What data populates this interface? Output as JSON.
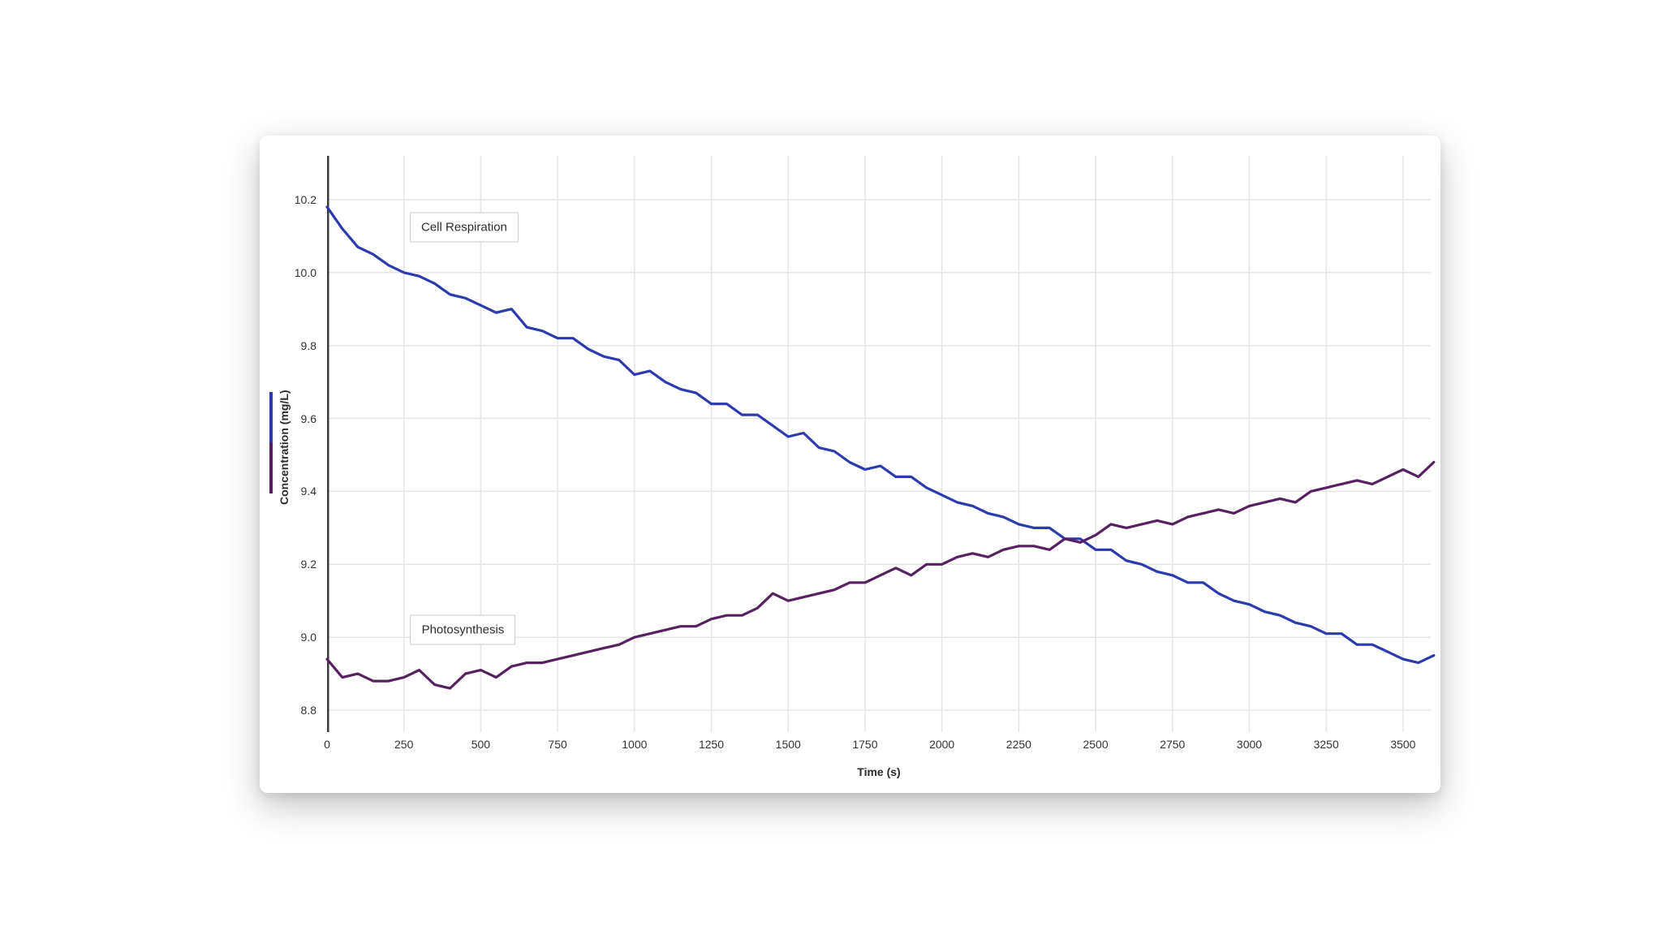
{
  "chart_data": {
    "type": "line",
    "title": "",
    "xlabel": "Time (s)",
    "ylabel": "Concentration (mg/L)",
    "xlim": [
      0,
      3590
    ],
    "ylim": [
      8.74,
      10.32
    ],
    "grid": true,
    "legend_position": "y-axis color bar (blue top, purple bottom)",
    "x_tick_values": [
      0,
      250,
      500,
      750,
      1000,
      1250,
      1500,
      1750,
      2000,
      2250,
      2500,
      2750,
      3000,
      3250,
      3500
    ],
    "x_tick_labels": [
      "0",
      "250",
      "500",
      "750",
      "1000",
      "1250",
      "1500",
      "1750",
      "2000",
      "2250",
      "2500",
      "2750",
      "3000",
      "3250",
      "3500"
    ],
    "y_tick_values": [
      8.8,
      9.0,
      9.2,
      9.4,
      9.6,
      9.8,
      10.0,
      10.2
    ],
    "y_tick_labels": [
      "8.8",
      "9.0",
      "9.2",
      "9.4",
      "9.6",
      "9.8",
      "10.0",
      "10.2"
    ],
    "x": [
      0,
      50,
      100,
      150,
      200,
      250,
      300,
      350,
      400,
      450,
      500,
      550,
      600,
      650,
      700,
      750,
      800,
      850,
      900,
      950,
      1000,
      1050,
      1100,
      1150,
      1200,
      1250,
      1300,
      1350,
      1400,
      1450,
      1500,
      1550,
      1600,
      1650,
      1700,
      1750,
      1800,
      1850,
      1900,
      1950,
      2000,
      2050,
      2100,
      2150,
      2200,
      2250,
      2300,
      2350,
      2400,
      2450,
      2500,
      2550,
      2600,
      2650,
      2700,
      2750,
      2800,
      2850,
      2900,
      2950,
      3000,
      3050,
      3100,
      3150,
      3200,
      3250,
      3300,
      3350,
      3400,
      3450,
      3500,
      3550,
      3600
    ],
    "series": [
      {
        "name": "Cell Respiration",
        "color": "#2c3aad",
        "values": [
          10.18,
          10.12,
          10.07,
          10.05,
          10.02,
          10.0,
          9.99,
          9.97,
          9.94,
          9.93,
          9.91,
          9.89,
          9.9,
          9.85,
          9.84,
          9.82,
          9.82,
          9.79,
          9.77,
          9.76,
          9.72,
          9.73,
          9.7,
          9.68,
          9.67,
          9.64,
          9.64,
          9.61,
          9.61,
          9.58,
          9.55,
          9.56,
          9.52,
          9.51,
          9.48,
          9.46,
          9.47,
          9.44,
          9.44,
          9.41,
          9.39,
          9.37,
          9.36,
          9.34,
          9.33,
          9.31,
          9.3,
          9.3,
          9.27,
          9.27,
          9.24,
          9.24,
          9.21,
          9.2,
          9.18,
          9.17,
          9.15,
          9.15,
          9.12,
          9.1,
          9.09,
          9.07,
          9.06,
          9.04,
          9.03,
          9.01,
          9.01,
          8.98,
          8.98,
          8.96,
          8.94,
          8.93,
          8.95
        ]
      },
      {
        "name": "Photosynthesis",
        "color": "#572060",
        "values": [
          8.94,
          8.89,
          8.9,
          8.88,
          8.88,
          8.89,
          8.91,
          8.87,
          8.86,
          8.9,
          8.91,
          8.89,
          8.92,
          8.93,
          8.93,
          8.94,
          8.95,
          8.96,
          8.97,
          8.98,
          9.0,
          9.01,
          9.02,
          9.03,
          9.03,
          9.05,
          9.06,
          9.06,
          9.08,
          9.12,
          9.1,
          9.11,
          9.12,
          9.13,
          9.15,
          9.15,
          9.17,
          9.19,
          9.17,
          9.2,
          9.2,
          9.22,
          9.23,
          9.22,
          9.24,
          9.25,
          9.25,
          9.24,
          9.27,
          9.26,
          9.28,
          9.31,
          9.3,
          9.31,
          9.32,
          9.31,
          9.33,
          9.34,
          9.35,
          9.34,
          9.36,
          9.37,
          9.38,
          9.37,
          9.4,
          9.41,
          9.42,
          9.43,
          9.42,
          9.44,
          9.46,
          9.44,
          9.48
        ]
      }
    ],
    "annotations": [
      {
        "text": "Cell Respiration",
        "x": 446,
        "y": 10.125
      },
      {
        "text": "Photosynthesis",
        "x": 442,
        "y": 9.02
      }
    ]
  }
}
